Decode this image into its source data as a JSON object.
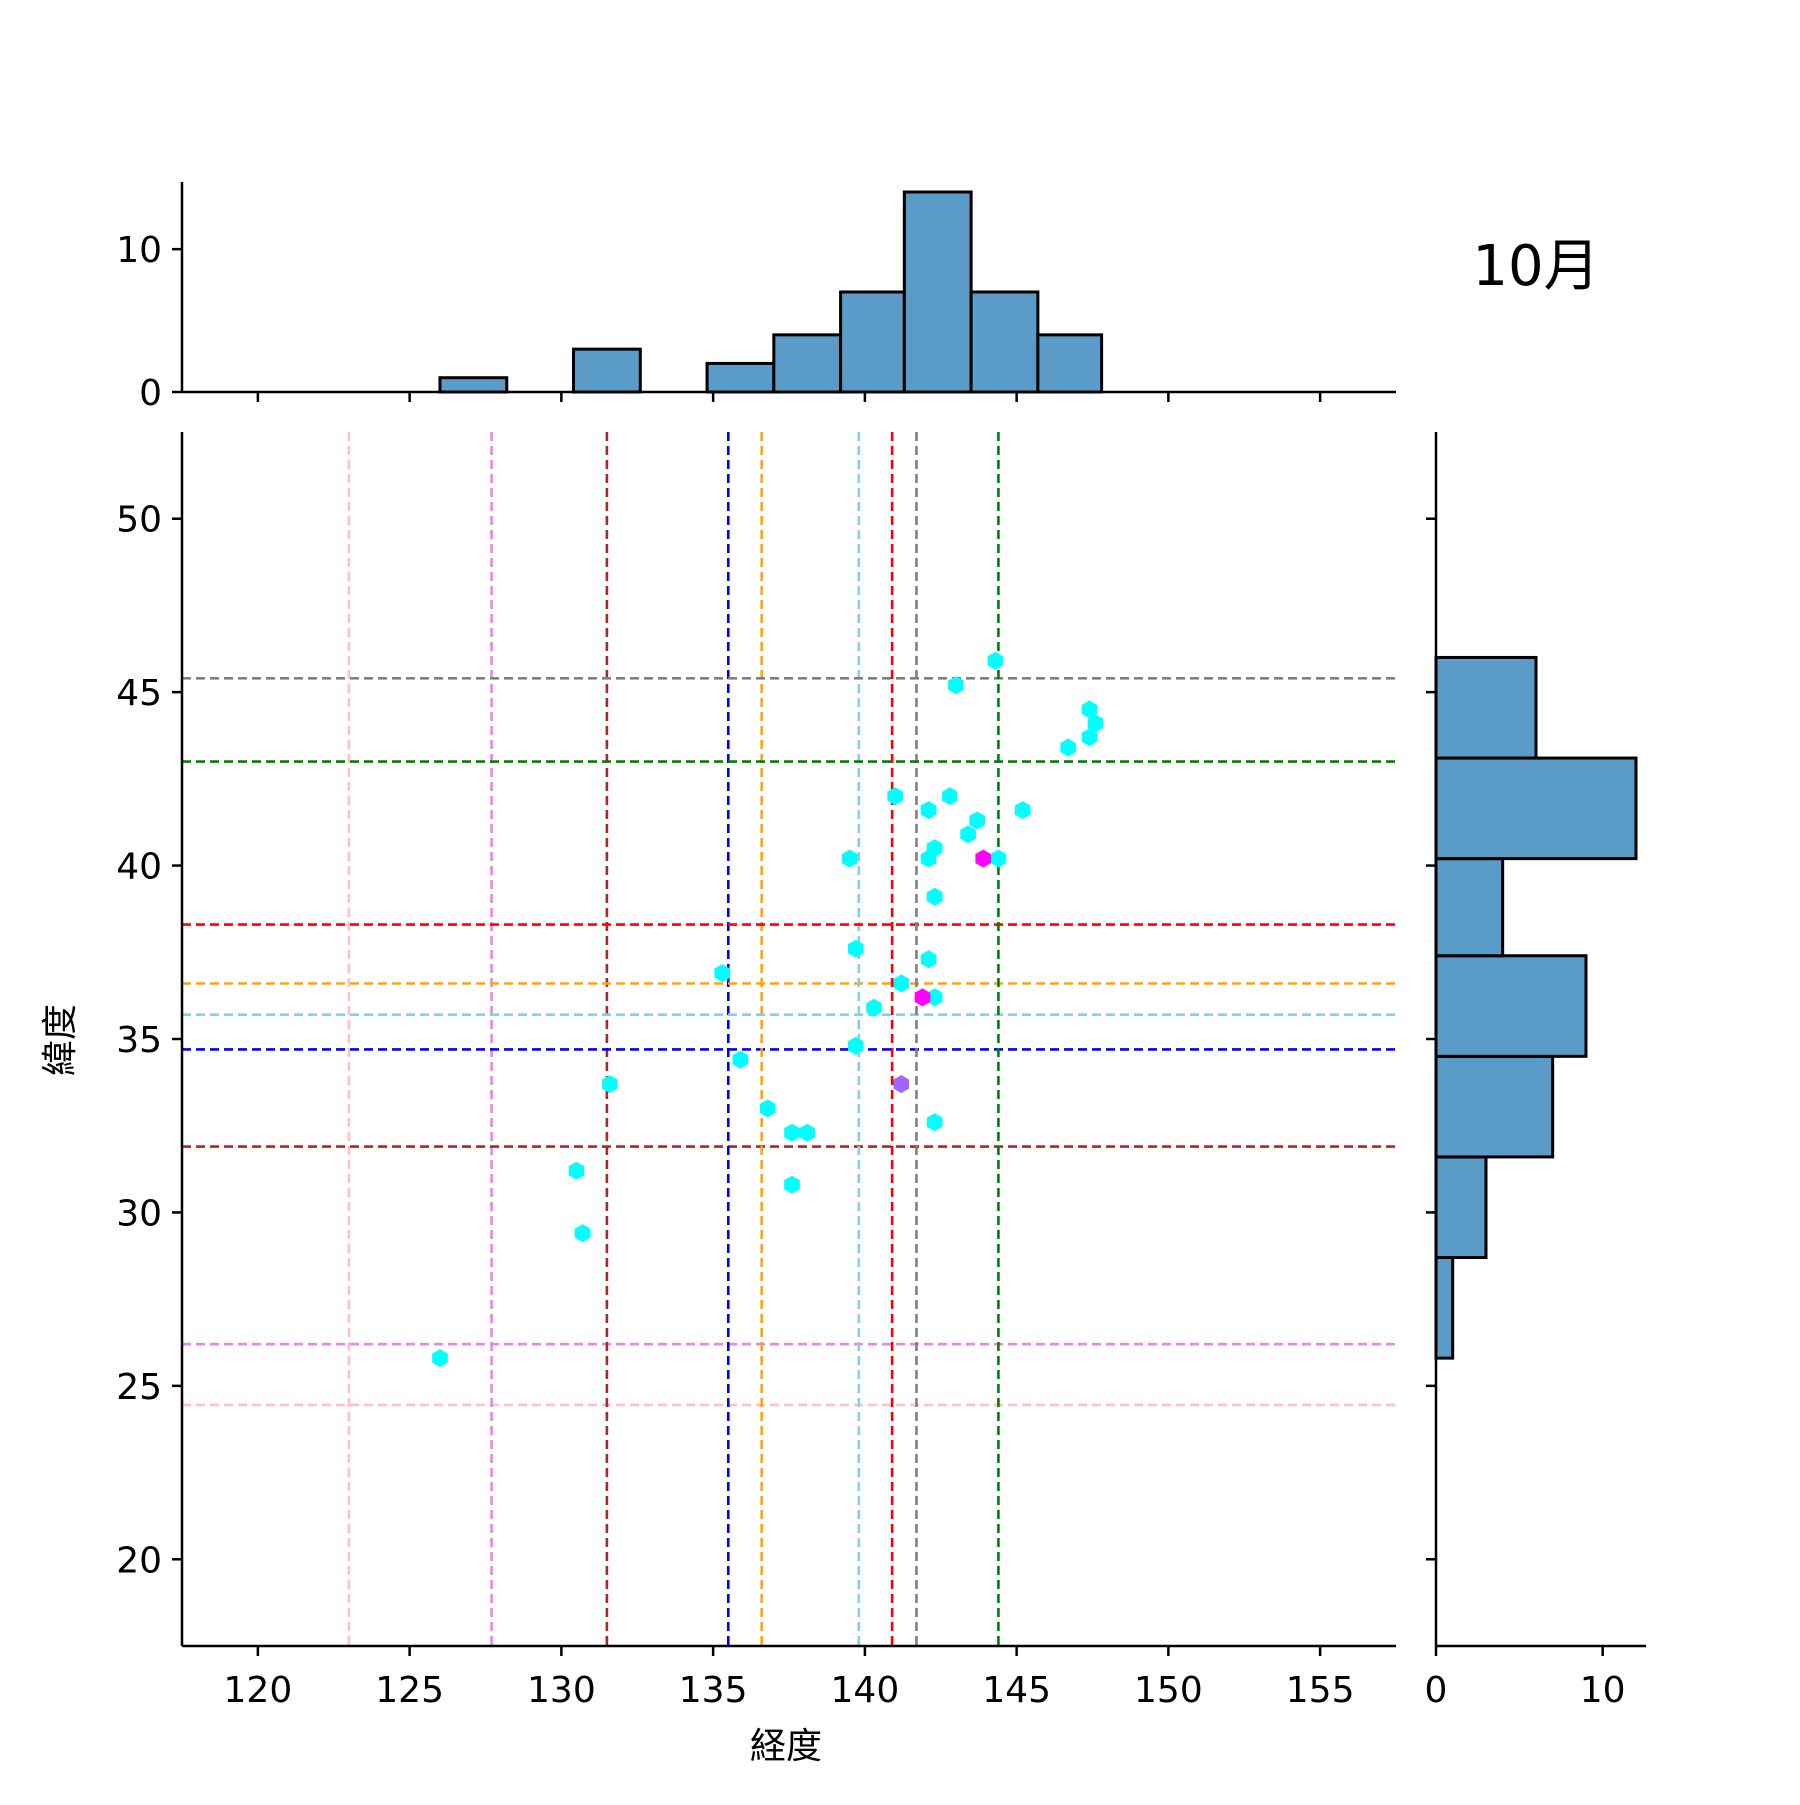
{
  "chart_data": {
    "type": "scatter",
    "annotation": "10月",
    "xlabel": "経度",
    "ylabel": "緯度",
    "xlim": [
      117.5,
      157.5
    ],
    "ylim": [
      17.5,
      52.5
    ],
    "xticks": [
      120,
      125,
      130,
      135,
      140,
      145,
      150,
      155
    ],
    "yticks": [
      20,
      25,
      30,
      35,
      40,
      45,
      50
    ],
    "points": [
      {
        "x": 126.0,
        "y": 25.8
      },
      {
        "x": 130.5,
        "y": 31.2
      },
      {
        "x": 130.7,
        "y": 29.4
      },
      {
        "x": 131.6,
        "y": 33.7
      },
      {
        "x": 135.3,
        "y": 36.9
      },
      {
        "x": 135.9,
        "y": 34.4
      },
      {
        "x": 136.8,
        "y": 33.0
      },
      {
        "x": 137.6,
        "y": 32.3
      },
      {
        "x": 138.1,
        "y": 32.3
      },
      {
        "x": 137.6,
        "y": 30.8
      },
      {
        "x": 139.5,
        "y": 40.2
      },
      {
        "x": 139.7,
        "y": 37.6
      },
      {
        "x": 139.7,
        "y": 34.8
      },
      {
        "x": 140.3,
        "y": 35.9
      },
      {
        "x": 141.0,
        "y": 42.0
      },
      {
        "x": 141.2,
        "y": 36.6
      },
      {
        "x": 142.1,
        "y": 41.6
      },
      {
        "x": 142.3,
        "y": 40.5
      },
      {
        "x": 142.1,
        "y": 40.2
      },
      {
        "x": 142.3,
        "y": 39.1
      },
      {
        "x": 142.1,
        "y": 37.3
      },
      {
        "x": 142.3,
        "y": 36.2
      },
      {
        "x": 142.3,
        "y": 32.6
      },
      {
        "x": 142.8,
        "y": 42.0
      },
      {
        "x": 143.0,
        "y": 45.2
      },
      {
        "x": 143.4,
        "y": 40.9
      },
      {
        "x": 143.7,
        "y": 41.3
      },
      {
        "x": 144.3,
        "y": 45.9
      },
      {
        "x": 144.4,
        "y": 40.2
      },
      {
        "x": 145.2,
        "y": 41.6
      },
      {
        "x": 146.7,
        "y": 43.4
      },
      {
        "x": 147.4,
        "y": 44.5
      },
      {
        "x": 147.6,
        "y": 44.1
      },
      {
        "x": 147.4,
        "y": 43.7
      }
    ],
    "highlighted_points": [
      {
        "x": 143.9,
        "y": 40.2,
        "color": "#ff00ff"
      },
      {
        "x": 141.9,
        "y": 36.2,
        "color": "#ff00ff"
      },
      {
        "x": 141.2,
        "y": 33.7,
        "color": "#a066ff"
      }
    ],
    "reference_lines": [
      {
        "color": "#ffc0cb",
        "x": 123.0,
        "y": 24.45
      },
      {
        "color": "#ee82ee",
        "x": 127.7,
        "y": 26.2
      },
      {
        "color": "#a52a2a",
        "x": 131.5,
        "y": 31.9
      },
      {
        "color": "#0000ff",
        "x": 135.5,
        "y": 34.7
      },
      {
        "color": "#ffa500",
        "x": 136.6,
        "y": 36.6
      },
      {
        "color": "#87ceeb",
        "x": 139.8,
        "y": 35.7
      },
      {
        "color": "#ff0000",
        "x": 140.9,
        "y": 38.3
      },
      {
        "color": "#808080",
        "x": 141.7,
        "y": 45.4
      },
      {
        "color": "#008000",
        "x": 144.4,
        "y": 43.0
      }
    ],
    "x_histogram": {
      "bin_edges": [
        126.0,
        128.2,
        130.4,
        132.6,
        134.8,
        137.0,
        139.2,
        141.3,
        143.5,
        145.7,
        147.8
      ],
      "counts": [
        1,
        0,
        3,
        0,
        2,
        4,
        7,
        14,
        7,
        4
      ],
      "ticks": [
        0,
        10
      ],
      "max": 14.7
    },
    "y_histogram": {
      "bin_edges": [
        25.8,
        28.7,
        31.6,
        34.5,
        37.4,
        40.2,
        43.1,
        46.0
      ],
      "counts": [
        1,
        3,
        7,
        9,
        4,
        12,
        6
      ],
      "ticks": [
        0,
        10
      ],
      "max": 12.6
    },
    "point_color": "#00ffff",
    "bar_color": "#5a9bc8",
    "grid": false
  }
}
